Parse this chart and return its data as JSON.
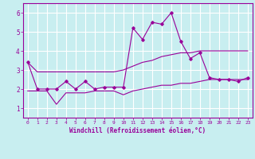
{
  "xlabel": "Windchill (Refroidissement éolien,°C)",
  "background_color": "#c8eef0",
  "grid_color": "#ffffff",
  "line_color": "#990099",
  "x_values": [
    0,
    1,
    2,
    3,
    4,
    5,
    6,
    7,
    8,
    9,
    10,
    11,
    12,
    13,
    14,
    15,
    16,
    17,
    18,
    19,
    20,
    21,
    22,
    23
  ],
  "main_y": [
    3.4,
    2.0,
    2.0,
    2.0,
    2.4,
    2.0,
    2.4,
    2.0,
    2.1,
    2.1,
    2.1,
    5.2,
    4.6,
    5.5,
    5.4,
    6.0,
    4.5,
    3.6,
    3.9,
    2.6,
    2.5,
    2.5,
    2.4,
    2.6
  ],
  "upper_y": [
    3.4,
    2.9,
    2.9,
    2.9,
    2.9,
    2.9,
    2.9,
    2.9,
    2.9,
    2.9,
    3.0,
    3.2,
    3.4,
    3.5,
    3.7,
    3.8,
    3.9,
    3.9,
    4.0,
    4.0,
    4.0,
    4.0,
    4.0,
    4.0
  ],
  "lower_y": [
    1.9,
    1.9,
    1.9,
    1.2,
    1.8,
    1.8,
    1.8,
    1.9,
    1.9,
    1.9,
    1.7,
    1.9,
    2.0,
    2.1,
    2.2,
    2.2,
    2.3,
    2.3,
    2.4,
    2.5,
    2.5,
    2.5,
    2.5,
    2.5
  ],
  "ylim": [
    0.5,
    6.5
  ],
  "xlim": [
    -0.5,
    23.5
  ],
  "yticks": [
    1,
    2,
    3,
    4,
    5,
    6
  ],
  "xticks": [
    0,
    1,
    2,
    3,
    4,
    5,
    6,
    7,
    8,
    9,
    10,
    11,
    12,
    13,
    14,
    15,
    16,
    17,
    18,
    19,
    20,
    21,
    22,
    23
  ]
}
